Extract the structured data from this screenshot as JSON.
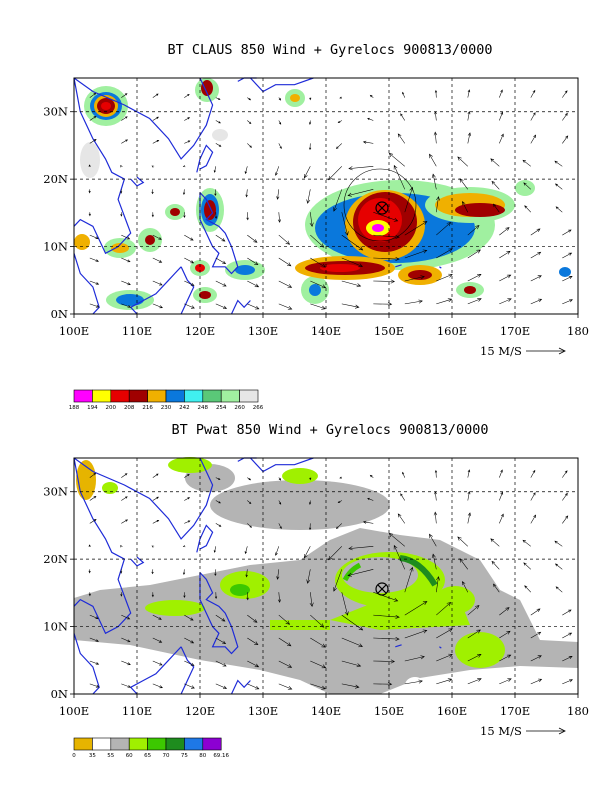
{
  "panel1": {
    "title": "BT CLAUS 850 Wind + Gyrelocs 900813/0000",
    "colorbar_labels": [
      "188",
      "194",
      "200",
      "208",
      "216",
      "230",
      "242",
      "248",
      "254",
      "260",
      "266"
    ],
    "colorbar_colors": [
      "#ff00ff",
      "#ffff00",
      "#e60000",
      "#a00000",
      "#f0b000",
      "#0a78dc",
      "#40f0f0",
      "#5ac878",
      "#a0f0a0",
      "#e6e6e6"
    ]
  },
  "panel2": {
    "title": "BT Pwat 850 Wind + Gyrelocs 900813/0000",
    "colorbar_labels": [
      "0",
      "35",
      "55",
      "60",
      "65",
      "70",
      "75",
      "80",
      "69.16"
    ],
    "colorbar_colors": [
      "#e6b400",
      "#ffffff",
      "#b4b4b4",
      "#a0f000",
      "#3cc800",
      "#1e8c1e",
      "#1e78e6",
      "#8c00d2"
    ]
  },
  "axes": {
    "x_ticks": [
      "100E",
      "110E",
      "120E",
      "130E",
      "140E",
      "150E",
      "160E",
      "170E",
      "180"
    ],
    "y_ticks": [
      "0N",
      "10N",
      "20N",
      "30N"
    ]
  },
  "vector_ref": "15 M/S",
  "gyre_location": {
    "lon": 148.0,
    "lat": 16.5
  }
}
